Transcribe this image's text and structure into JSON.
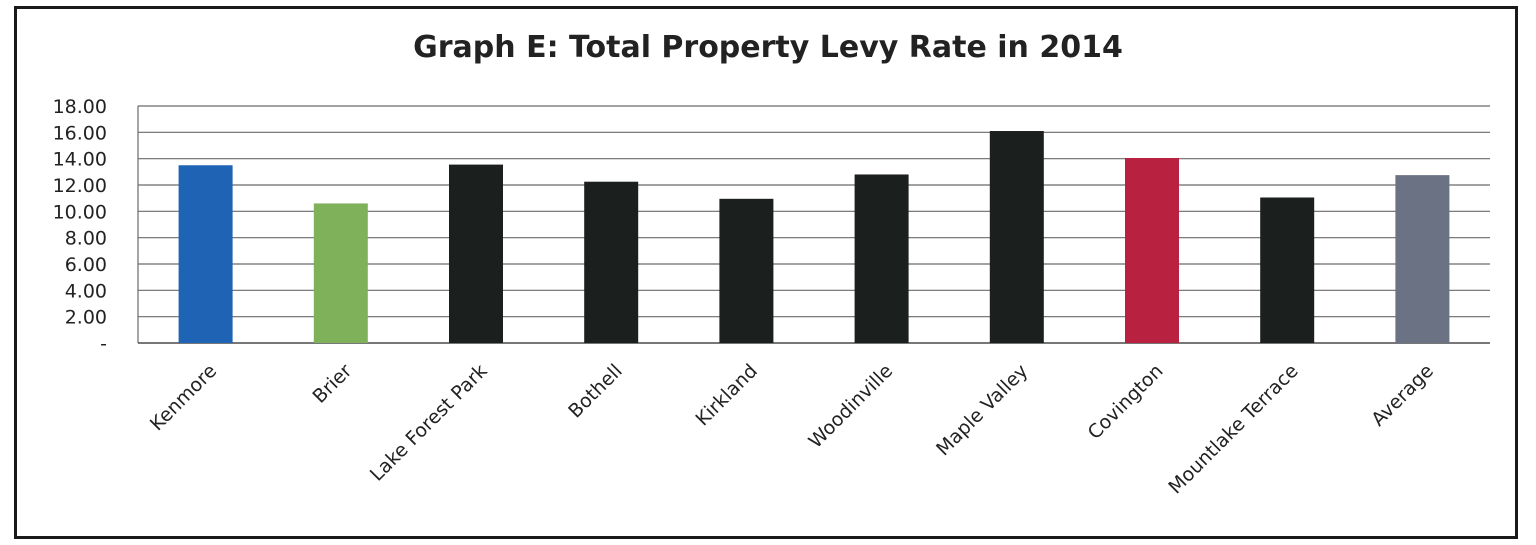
{
  "chart_data": {
    "type": "bar",
    "title": "Graph E: Total Property Levy Rate in 2014",
    "xlabel": "",
    "ylabel": "",
    "ylim": [
      0,
      18
    ],
    "y_ticks": [
      0,
      2,
      4,
      6,
      8,
      10,
      12,
      14,
      16,
      18
    ],
    "y_tick_labels": [
      "-",
      "2.00",
      "4.00",
      "6.00",
      "8.00",
      "10.00",
      "12.00",
      "14.00",
      "16.00",
      "18.00"
    ],
    "grid": true,
    "legend": "none",
    "categories": [
      "Kenmore",
      "Brier",
      "Lake Forest Park",
      "Bothell",
      "Kirkland",
      "Woodinville",
      "Maple Valley",
      "Covington",
      "Mountlake Terrace",
      "Average"
    ],
    "values": [
      13.5,
      10.6,
      13.55,
      12.25,
      10.95,
      12.8,
      16.1,
      14.05,
      11.05,
      12.75
    ],
    "colors": [
      "#1f63b5",
      "#7fb05a",
      "#1b1f1d",
      "#1b1f1d",
      "#1b1f1d",
      "#1b1f1d",
      "#1b1f1d",
      "#b8213f",
      "#1b1f1d",
      "#6b7283"
    ]
  }
}
